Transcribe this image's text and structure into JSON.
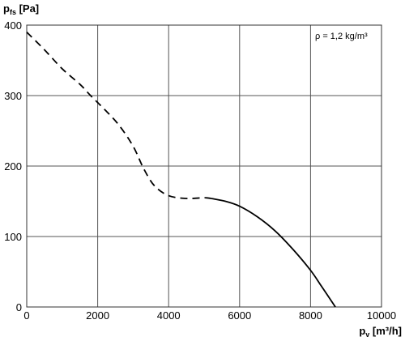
{
  "chart_data": {
    "type": "line",
    "ylabel": {
      "main": "p",
      "sub": "fs",
      "unit": " [Pa]"
    },
    "xlabel": {
      "main": "p",
      "sub": "v",
      "unit": " [m³/h]"
    },
    "annotation": "ρ = 1,2 kg/m³",
    "xlim": [
      0,
      10000
    ],
    "ylim": [
      0,
      400
    ],
    "xticks": [
      "0",
      "2000",
      "4000",
      "6000",
      "8000",
      "10000"
    ],
    "yticks": [
      "0",
      "100",
      "200",
      "300",
      "400"
    ],
    "grid": true,
    "series": [
      {
        "style": "dashed",
        "points": [
          [
            0,
            390
          ],
          [
            500,
            365
          ],
          [
            1000,
            338
          ],
          [
            1500,
            316
          ],
          [
            1800,
            300
          ],
          [
            2200,
            280
          ],
          [
            2600,
            258
          ],
          [
            3000,
            228
          ],
          [
            3300,
            196
          ],
          [
            3600,
            172
          ],
          [
            4000,
            158
          ],
          [
            4500,
            154
          ],
          [
            5000,
            155
          ],
          [
            5200,
            154
          ]
        ]
      },
      {
        "style": "solid",
        "points": [
          [
            5200,
            154
          ],
          [
            5600,
            150
          ],
          [
            6000,
            143
          ],
          [
            6500,
            128
          ],
          [
            7000,
            108
          ],
          [
            7500,
            82
          ],
          [
            8000,
            52
          ],
          [
            8300,
            30
          ],
          [
            8700,
            0
          ]
        ]
      }
    ]
  }
}
